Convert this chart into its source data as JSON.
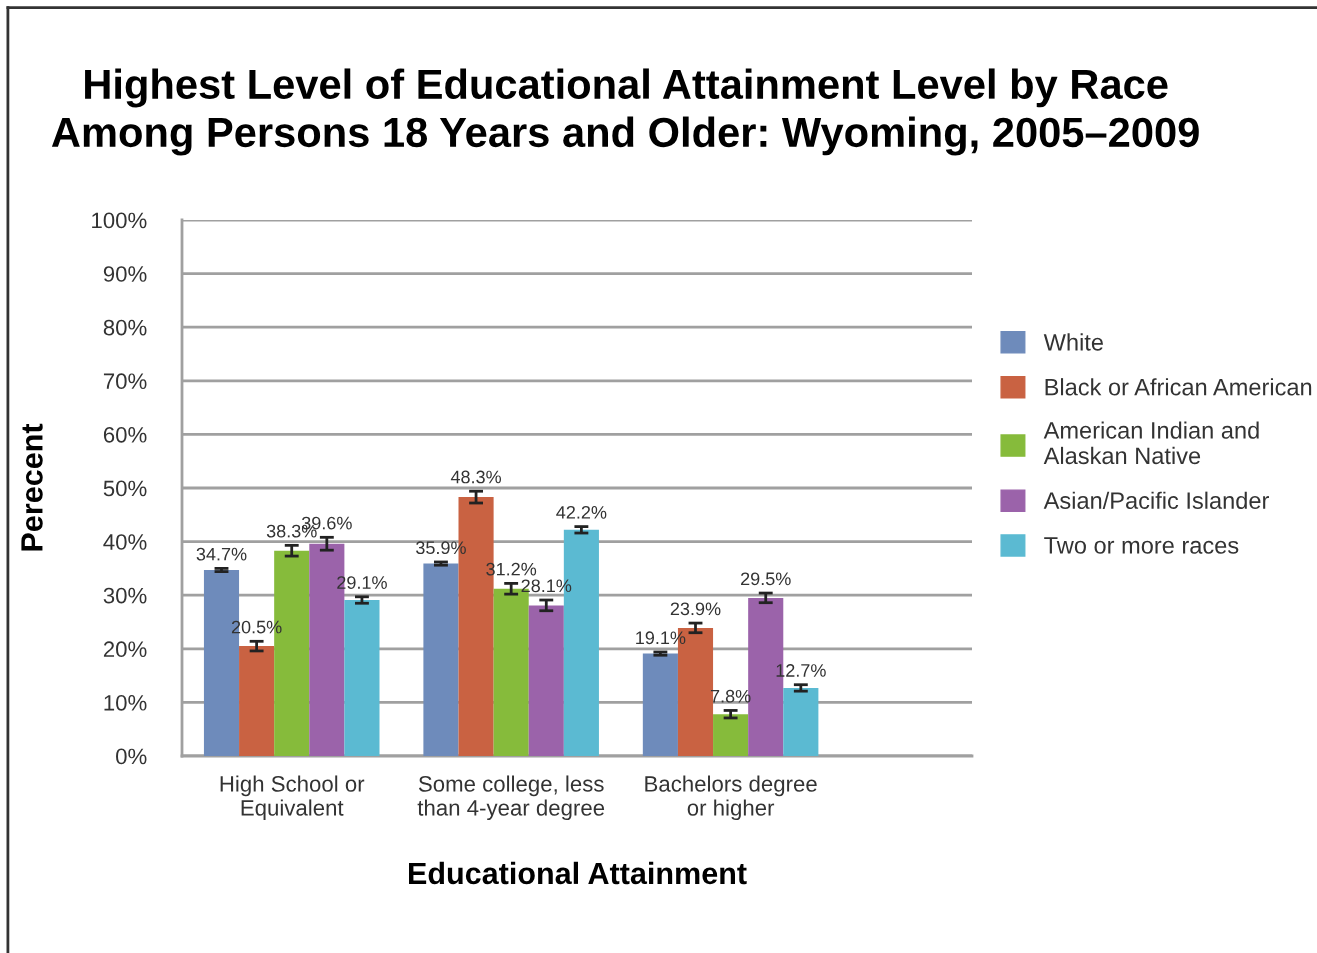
{
  "chart_data": {
    "type": "bar",
    "title": "Highest Level of Educational Attainment Level by Race\nAmong Persons 18 Years and Older: Wyoming, 2005–2009",
    "xlabel": "Educational Attainment",
    "ylabel": "Perecent",
    "categories": [
      "High School or\nEquivalent",
      "Some college, less\nthan 4-year degree",
      "Bachelors degree\nor higher"
    ],
    "series": [
      {
        "name": "White",
        "color": "#6e8bbb",
        "values": [
          34.7,
          35.9,
          19.1
        ],
        "value_labels": [
          "34.7%",
          "35.9%",
          "19.1%"
        ],
        "errors": [
          0.3,
          0.3,
          0.3
        ]
      },
      {
        "name": "Black or African American",
        "color": "#c96242",
        "values": [
          20.5,
          48.3,
          23.9
        ],
        "value_labels": [
          "20.5%",
          "48.3%",
          "23.9%"
        ],
        "errors": [
          0.9,
          1.1,
          0.9
        ]
      },
      {
        "name": "American Indian and\nAlaskan Native",
        "color": "#86bb3b",
        "values": [
          38.3,
          31.2,
          7.8
        ],
        "value_labels": [
          "38.3%",
          "31.2%",
          "7.8%"
        ],
        "errors": [
          1.0,
          1.0,
          0.7
        ]
      },
      {
        "name": "Asian/Pacific Islander",
        "color": "#9b63aa",
        "values": [
          39.6,
          28.1,
          29.5
        ],
        "value_labels": [
          "39.6%",
          "28.1%",
          "29.5%"
        ],
        "errors": [
          1.2,
          1.0,
          0.9
        ]
      },
      {
        "name": "Two or more races",
        "color": "#5bbad2",
        "values": [
          29.1,
          42.2,
          12.7
        ],
        "value_labels": [
          "29.1%",
          "42.2%",
          "12.7%"
        ],
        "errors": [
          0.6,
          0.6,
          0.6
        ]
      }
    ],
    "ylim": [
      0,
      100
    ],
    "yticks": [
      {
        "value": 0,
        "label": "0%"
      },
      {
        "value": 10,
        "label": "10%"
      },
      {
        "value": 20,
        "label": "20%"
      },
      {
        "value": 30,
        "label": "30%"
      },
      {
        "value": 40,
        "label": "40%"
      },
      {
        "value": 50,
        "label": "50%"
      },
      {
        "value": 60,
        "label": "60%"
      },
      {
        "value": 70,
        "label": "70%"
      },
      {
        "value": 80,
        "label": "80%"
      },
      {
        "value": 90,
        "label": "90%"
      },
      {
        "value": 100,
        "label": "100%"
      }
    ],
    "grid": "y",
    "legend": "right"
  }
}
